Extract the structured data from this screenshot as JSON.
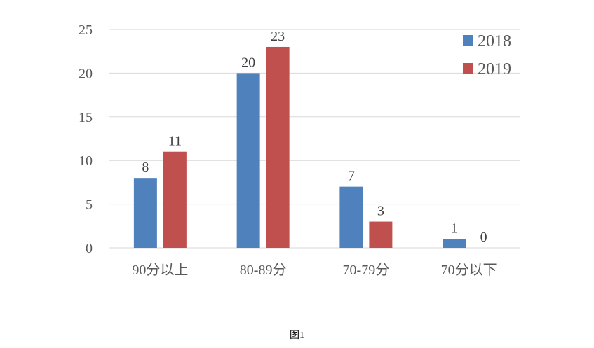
{
  "chart_data": {
    "type": "bar",
    "categories": [
      "90分以上",
      "80-89分",
      "70-79分",
      "70分以下"
    ],
    "series": [
      {
        "name": "2018",
        "values": [
          8,
          20,
          7,
          1
        ],
        "color": "#4f81bd"
      },
      {
        "name": "2019",
        "values": [
          11,
          23,
          3,
          0
        ],
        "color": "#c0504d"
      }
    ],
    "ylim": [
      0,
      25
    ],
    "yticks": [
      0,
      5,
      10,
      15,
      20,
      25
    ],
    "grid": true,
    "legend": "top-right",
    "data_labels": true
  },
  "caption": "图1"
}
